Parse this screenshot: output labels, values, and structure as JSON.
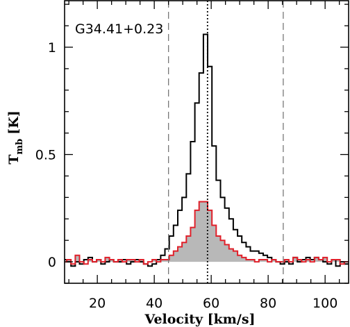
{
  "chart_data": {
    "type": "line",
    "title": "",
    "annotation": "G34.41+0.23",
    "xlabel": "Velocity [km/s]",
    "ylabel_main": "T",
    "ylabel_sub": "mb",
    "ylabel_unit": "[K]",
    "xlim": [
      8.5,
      108.5
    ],
    "ylim": [
      -0.1,
      1.22
    ],
    "xticks_major": [
      20,
      40,
      60,
      80,
      100
    ],
    "xtick_labels": [
      "20",
      "40",
      "60",
      "80",
      "100"
    ],
    "yticks_major": [
      0,
      0.5,
      1
    ],
    "ytick_labels": [
      "0",
      "0.5",
      "1"
    ],
    "grid": false,
    "legend": "none",
    "step_width": 1.5,
    "vertical_lines": [
      {
        "x": 45,
        "style": "dashed"
      },
      {
        "x": 58.7,
        "style": "dotted"
      },
      {
        "x": 85.3,
        "style": "dashed"
      }
    ],
    "series": [
      {
        "color": "#000000",
        "style": "step",
        "x": [
          8.5,
          10,
          11.5,
          13,
          14.5,
          16,
          17.5,
          19,
          20.5,
          22,
          23.5,
          25,
          26.5,
          28,
          29.5,
          31,
          32.5,
          34,
          35.5,
          37,
          38.5,
          40,
          41.5,
          43,
          44.5,
          46,
          47.5,
          49,
          50.5,
          52,
          53.5,
          55,
          56.5,
          58,
          59.5,
          61,
          62.5,
          64,
          65.5,
          67,
          68.5,
          70,
          71.5,
          73,
          74.5,
          76,
          77.5,
          79,
          80.5,
          82,
          83.5,
          85,
          86.5,
          88,
          89.5,
          91,
          92.5,
          94,
          95.5,
          97,
          98.5,
          100,
          101.5,
          103,
          104.5,
          106,
          107.5
        ],
        "values": [
          0.01,
          0.0,
          -0.02,
          0.0,
          -0.01,
          0.01,
          0.02,
          0.0,
          0.01,
          -0.01,
          0.0,
          0.01,
          0.0,
          0.0,
          0.01,
          -0.01,
          0.0,
          0.01,
          0.0,
          -0.01,
          -0.02,
          -0.01,
          0.01,
          0.03,
          0.06,
          0.12,
          0.17,
          0.24,
          0.3,
          0.41,
          0.56,
          0.74,
          0.88,
          1.06,
          0.91,
          0.54,
          0.38,
          0.3,
          0.25,
          0.2,
          0.15,
          0.12,
          0.09,
          0.07,
          0.05,
          0.05,
          0.04,
          0.03,
          0.02,
          0.01,
          0.0,
          -0.01,
          0.0,
          -0.01,
          0.02,
          0.0,
          0.01,
          0.02,
          0.01,
          0.02,
          0.01,
          0.0,
          -0.01,
          0.01,
          -0.02,
          0.0,
          -0.01
        ]
      },
      {
        "color": "#e0202a",
        "style": "step-filled",
        "fill": "#b8b8b8",
        "x": [
          8.5,
          10,
          11.5,
          13,
          14.5,
          16,
          17.5,
          19,
          20.5,
          22,
          23.5,
          25,
          26.5,
          28,
          29.5,
          31,
          32.5,
          34,
          35.5,
          37,
          38.5,
          40,
          41.5,
          43,
          44.5,
          46,
          47.5,
          49,
          50.5,
          52,
          53.5,
          55,
          56.5,
          58,
          59.5,
          61,
          62.5,
          64,
          65.5,
          67,
          68.5,
          70,
          71.5,
          73,
          74.5,
          76,
          77.5,
          79,
          80.5,
          82,
          83.5,
          85,
          86.5,
          88,
          89.5,
          91,
          92.5,
          94,
          95.5,
          97,
          98.5,
          100,
          101.5,
          103,
          104.5,
          106,
          107.5
        ],
        "values": [
          0.0,
          0.01,
          -0.01,
          0.03,
          0.0,
          -0.01,
          0.01,
          0.0,
          0.01,
          0.0,
          0.02,
          0.01,
          0.0,
          0.01,
          0.0,
          0.01,
          0.01,
          0.0,
          0.01,
          -0.01,
          0.0,
          0.01,
          0.0,
          0.01,
          0.01,
          0.03,
          0.05,
          0.07,
          0.09,
          0.12,
          0.16,
          0.24,
          0.28,
          0.28,
          0.24,
          0.17,
          0.12,
          0.1,
          0.08,
          0.06,
          0.05,
          0.03,
          0.02,
          0.01,
          0.01,
          0.0,
          0.01,
          0.01,
          0.0,
          0.01,
          0.0,
          0.0,
          0.01,
          0.0,
          0.02,
          0.01,
          0.0,
          0.01,
          0.0,
          0.02,
          0.01,
          0.02,
          0.0,
          0.01,
          0.01,
          -0.01,
          0.0
        ]
      }
    ]
  }
}
